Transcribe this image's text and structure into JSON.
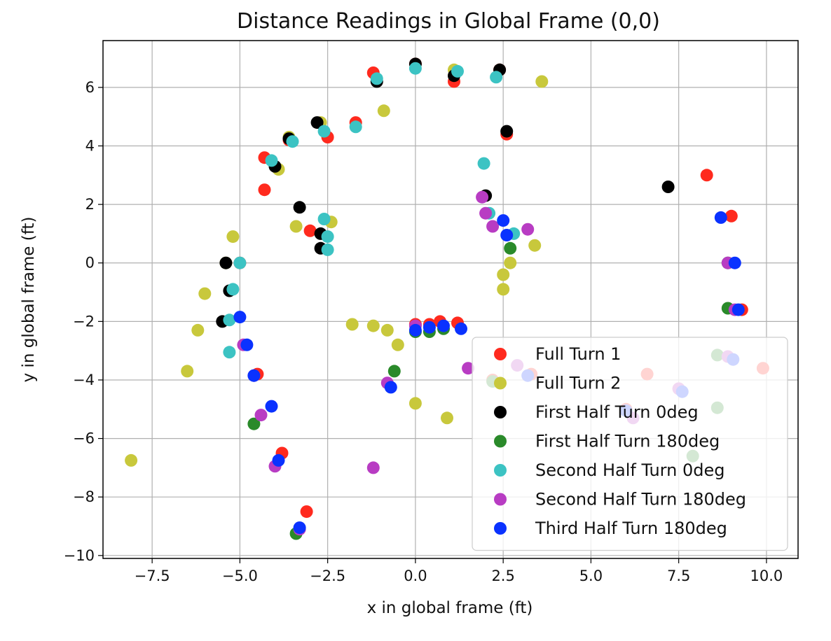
{
  "chart_data": {
    "type": "scatter",
    "title": "Distance Readings in Global Frame (0,0)",
    "xlabel": "x in global frame (ft)",
    "ylabel": "y in global frame (ft)",
    "xlim": [
      -8.9,
      10.9
    ],
    "ylim": [
      -10.1,
      7.6
    ],
    "xticks": [
      -7.5,
      -5.0,
      -2.5,
      0.0,
      2.5,
      5.0,
      7.5,
      10.0
    ],
    "xtick_labels": [
      "−7.5",
      "−5.0",
      "−2.5",
      "0.0",
      "2.5",
      "5.0",
      "7.5",
      "10.0"
    ],
    "yticks": [
      -10,
      -8,
      -6,
      -4,
      -2,
      0,
      2,
      4,
      6
    ],
    "ytick_labels": [
      "−10",
      "−8",
      "−6",
      "−4",
      "−2",
      "0",
      "2",
      "4",
      "6"
    ],
    "grid": true,
    "legend_position": "lower-right",
    "series": [
      {
        "name": "Full Turn 1",
        "color": "#ff2a1e",
        "points": [
          [
            -5.0,
            0.0
          ],
          [
            -4.3,
            2.5
          ],
          [
            -4.3,
            3.6
          ],
          [
            -3.6,
            4.2
          ],
          [
            -3.0,
            1.1
          ],
          [
            -2.5,
            4.3
          ],
          [
            -1.7,
            4.8
          ],
          [
            -1.2,
            6.5
          ],
          [
            0.0,
            6.8
          ],
          [
            1.1,
            6.2
          ],
          [
            2.6,
            4.4
          ],
          [
            2.4,
            6.6
          ],
          [
            0.0,
            -2.1
          ],
          [
            0.4,
            -2.1
          ],
          [
            0.7,
            -2.0
          ],
          [
            1.2,
            -2.05
          ],
          [
            -4.5,
            -3.8
          ],
          [
            -3.8,
            -6.5
          ],
          [
            -3.1,
            -8.5
          ],
          [
            9.0,
            1.6
          ],
          [
            9.3,
            -1.6
          ],
          [
            8.3,
            3.0
          ],
          [
            9.9,
            -3.6
          ],
          [
            6.6,
            -3.8
          ],
          [
            3.3,
            -3.8
          ],
          [
            2.2,
            -4.0
          ],
          [
            6.0,
            -5.0
          ],
          [
            7.5,
            -4.3
          ]
        ]
      },
      {
        "name": "Full Turn 2",
        "color": "#c8c83c",
        "points": [
          [
            -5.2,
            0.9
          ],
          [
            -5.4,
            0.0
          ],
          [
            -6.0,
            -1.05
          ],
          [
            -6.2,
            -2.3
          ],
          [
            -6.5,
            -3.7
          ],
          [
            -8.1,
            -6.75
          ],
          [
            -3.9,
            3.2
          ],
          [
            -3.6,
            4.3
          ],
          [
            -3.4,
            1.25
          ],
          [
            -2.4,
            1.4
          ],
          [
            -0.9,
            5.2
          ],
          [
            3.6,
            6.2
          ],
          [
            3.4,
            0.6
          ],
          [
            2.7,
            0.0
          ],
          [
            2.5,
            -0.4
          ],
          [
            2.5,
            -0.9
          ],
          [
            -1.8,
            -2.1
          ],
          [
            -1.2,
            -2.15
          ],
          [
            -0.8,
            -2.3
          ],
          [
            -0.5,
            -2.8
          ],
          [
            0.0,
            -4.8
          ],
          [
            0.9,
            -5.3
          ],
          [
            -2.7,
            4.8
          ],
          [
            1.1,
            6.6
          ]
        ]
      },
      {
        "name": "First Half Turn 0deg",
        "color": "#000000",
        "points": [
          [
            -5.4,
            0.0
          ],
          [
            -5.3,
            -0.95
          ],
          [
            -5.5,
            -2.0
          ],
          [
            -4.0,
            3.3
          ],
          [
            -3.6,
            4.25
          ],
          [
            -3.3,
            1.9
          ],
          [
            -2.8,
            4.8
          ],
          [
            -2.7,
            1.0
          ],
          [
            -2.7,
            0.5
          ],
          [
            -1.1,
            6.2
          ],
          [
            0.0,
            6.8
          ],
          [
            1.1,
            6.4
          ],
          [
            2.4,
            6.6
          ],
          [
            2.6,
            4.5
          ],
          [
            2.0,
            2.3
          ],
          [
            7.2,
            2.6
          ]
        ]
      },
      {
        "name": "First Half Turn 180deg",
        "color": "#2a8a2a",
        "points": [
          [
            -0.6,
            -3.7
          ],
          [
            0.0,
            -2.35
          ],
          [
            0.4,
            -2.35
          ],
          [
            0.8,
            -2.25
          ],
          [
            -4.6,
            -5.5
          ],
          [
            -3.4,
            -9.25
          ],
          [
            2.7,
            0.5
          ],
          [
            8.9,
            0.0
          ],
          [
            8.9,
            -1.55
          ],
          [
            8.6,
            -4.95
          ],
          [
            7.9,
            -6.6
          ],
          [
            8.6,
            -3.15
          ],
          [
            2.2,
            -4.05
          ]
        ]
      },
      {
        "name": "Second Half Turn 0deg",
        "color": "#3cc3c3",
        "points": [
          [
            -5.0,
            0.0
          ],
          [
            -5.2,
            -0.9
          ],
          [
            -5.3,
            -1.95
          ],
          [
            -5.3,
            -3.05
          ],
          [
            -4.1,
            3.5
          ],
          [
            -3.5,
            4.15
          ],
          [
            -2.6,
            4.5
          ],
          [
            -2.6,
            1.5
          ],
          [
            -2.5,
            0.9
          ],
          [
            -2.5,
            0.45
          ],
          [
            -1.7,
            4.65
          ],
          [
            -1.1,
            6.3
          ],
          [
            0.0,
            6.65
          ],
          [
            1.2,
            6.55
          ],
          [
            2.3,
            6.35
          ],
          [
            1.95,
            3.4
          ],
          [
            2.1,
            1.7
          ],
          [
            2.8,
            1.0
          ]
        ]
      },
      {
        "name": "Second Half Turn 180deg",
        "color": "#b83cc3",
        "points": [
          [
            1.9,
            2.25
          ],
          [
            2.0,
            1.7
          ],
          [
            2.2,
            1.25
          ],
          [
            3.2,
            1.15
          ],
          [
            0.0,
            -2.15
          ],
          [
            -0.8,
            -4.1
          ],
          [
            -1.2,
            -7.0
          ],
          [
            -4.9,
            -2.8
          ],
          [
            -4.6,
            -3.85
          ],
          [
            -4.4,
            -5.2
          ],
          [
            -4.0,
            -6.95
          ],
          [
            -3.3,
            -9.1
          ],
          [
            8.9,
            0.0
          ],
          [
            9.1,
            -1.6
          ],
          [
            8.9,
            -3.2
          ],
          [
            1.5,
            -3.6
          ],
          [
            2.9,
            -3.5
          ],
          [
            6.2,
            -5.3
          ],
          [
            7.5,
            -4.3
          ]
        ]
      },
      {
        "name": "Third Half Turn 180deg",
        "color": "#0a32ff",
        "points": [
          [
            2.5,
            1.45
          ],
          [
            2.6,
            0.95
          ],
          [
            0.0,
            -2.3
          ],
          [
            0.4,
            -2.2
          ],
          [
            0.8,
            -2.15
          ],
          [
            1.3,
            -2.25
          ],
          [
            -5.0,
            -1.85
          ],
          [
            -4.8,
            -2.8
          ],
          [
            -4.6,
            -3.85
          ],
          [
            -4.1,
            -4.9
          ],
          [
            -3.9,
            -6.75
          ],
          [
            -3.3,
            -9.05
          ],
          [
            -0.7,
            -4.25
          ],
          [
            8.7,
            1.55
          ],
          [
            9.1,
            0.0
          ],
          [
            9.2,
            -1.6
          ],
          [
            9.05,
            -3.3
          ],
          [
            3.2,
            -3.85
          ],
          [
            6.0,
            -5.05
          ],
          [
            7.6,
            -4.4
          ]
        ]
      }
    ]
  }
}
